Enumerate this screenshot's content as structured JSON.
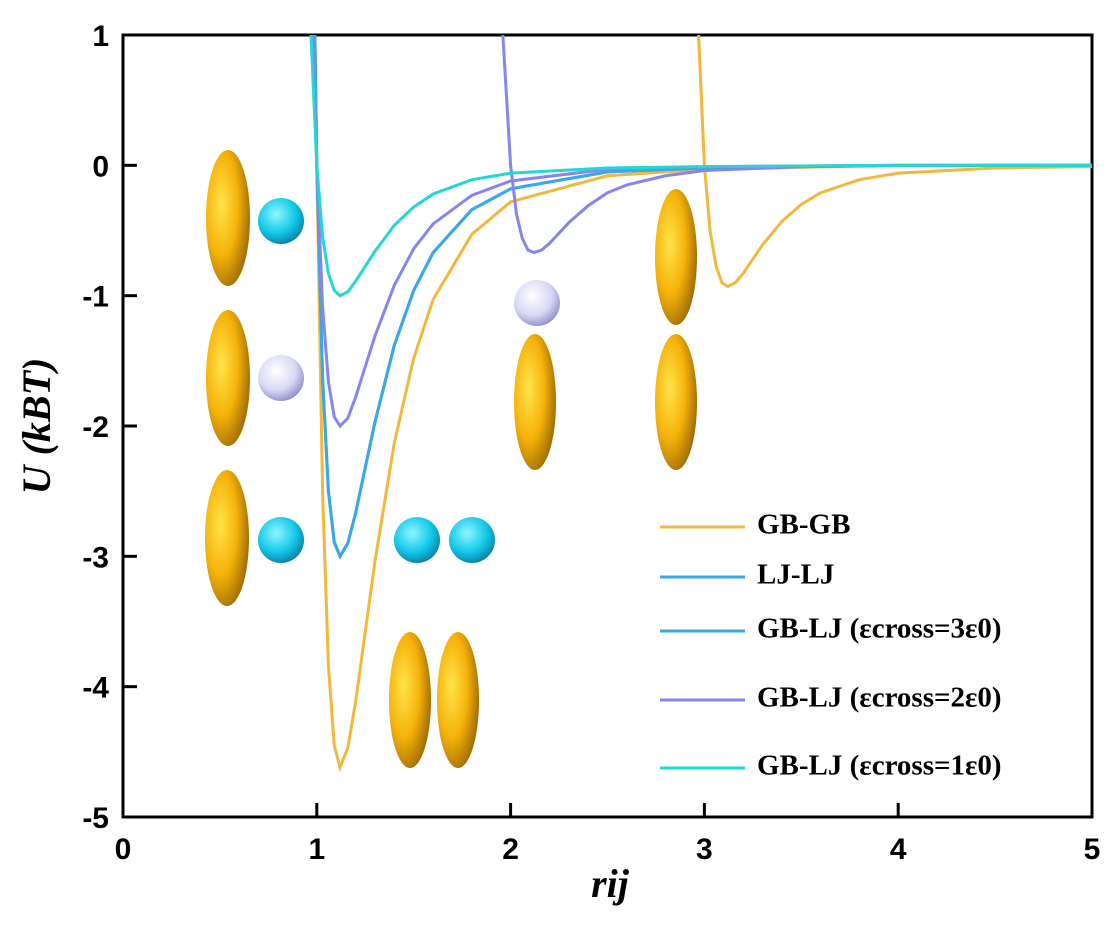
{
  "chart_data": {
    "type": "line",
    "x_label": "rij",
    "y_label": "U (kBT)",
    "xlim": [
      0,
      5
    ],
    "ylim": [
      -5,
      1
    ],
    "xticks": [
      0,
      1,
      2,
      3,
      4,
      5
    ],
    "yticks": [
      -5,
      -4,
      -3,
      -2,
      -1,
      0,
      1
    ],
    "series": [
      {
        "name": "GB-GB",
        "color": "#f2b83c",
        "x": [
          0.99,
          1.0,
          1.03,
          1.06,
          1.09,
          1.12,
          1.16,
          1.2,
          1.3,
          1.4,
          1.5,
          1.6,
          1.8,
          2.0,
          2.5,
          3.0,
          4.0,
          5.0,
          null,
          2.97,
          3.0,
          3.03,
          3.06,
          3.09,
          3.12,
          3.16,
          3.2,
          3.3,
          3.4,
          3.5,
          3.6,
          3.8,
          4.0,
          4.5,
          5.0
        ],
        "values": [
          1,
          0,
          -2.52,
          -3.84,
          -4.45,
          -4.62,
          -4.47,
          -4.12,
          -3.04,
          -2.13,
          -1.48,
          -1.03,
          -0.53,
          -0.28,
          -0.08,
          -0.03,
          0,
          0,
          null,
          1,
          0,
          -0.51,
          -0.77,
          -0.9,
          -0.93,
          -0.9,
          -0.83,
          -0.61,
          -0.43,
          -0.3,
          -0.21,
          -0.11,
          -0.06,
          -0.02,
          -0.01
        ]
      },
      {
        "name": "LJ-LJ",
        "color": "#3aa8e6",
        "x": [
          0.99,
          1.0,
          1.03,
          1.06,
          1.09,
          1.12,
          1.16,
          1.2,
          1.3,
          1.4,
          1.5,
          1.6,
          1.8,
          2.0,
          2.5,
          3.0,
          4.0,
          5.0
        ],
        "values": [
          1,
          0,
          -1.64,
          -2.5,
          -2.89,
          -3,
          -2.9,
          -2.67,
          -1.97,
          -1.38,
          -0.96,
          -0.67,
          -0.34,
          -0.18,
          -0.05,
          -0.02,
          0,
          0
        ]
      },
      {
        "name": "GB-LJ (εcross=3ε0)",
        "color": "#3aa8e6",
        "x": [
          0.99,
          1.0,
          1.03,
          1.06,
          1.09,
          1.12,
          1.16,
          1.2,
          1.3,
          1.4,
          1.5,
          1.6,
          1.8,
          2.0,
          2.5,
          3.0,
          4.0,
          5.0
        ],
        "values": [
          1,
          0,
          -1.64,
          -2.5,
          -2.89,
          -3,
          -2.9,
          -2.67,
          -1.97,
          -1.38,
          -0.96,
          -0.67,
          -0.34,
          -0.18,
          -0.05,
          -0.02,
          0,
          0
        ]
      },
      {
        "name": "GB-LJ (εcross=2ε0)",
        "color": "#8585ec",
        "x": [
          0.98,
          1.0,
          1.03,
          1.06,
          1.09,
          1.12,
          1.16,
          1.2,
          1.3,
          1.4,
          1.5,
          1.6,
          1.8,
          2.0,
          2.5,
          3.0,
          4.0,
          5.0,
          null,
          1.96,
          2.0,
          2.03,
          2.06,
          2.09,
          2.12,
          2.16,
          2.2,
          2.3,
          2.4,
          2.5,
          2.6,
          2.8,
          3.0,
          3.5,
          4.0,
          5.0
        ],
        "values": [
          1,
          0,
          -1.09,
          -1.66,
          -1.93,
          -2,
          -1.94,
          -1.78,
          -1.31,
          -0.92,
          -0.64,
          -0.45,
          -0.23,
          -0.12,
          -0.03,
          -0.01,
          0,
          0,
          null,
          1,
          0,
          -0.37,
          -0.56,
          -0.65,
          -0.67,
          -0.65,
          -0.6,
          -0.44,
          -0.31,
          -0.21,
          -0.15,
          -0.08,
          -0.04,
          -0.01,
          0,
          0
        ]
      },
      {
        "name": "GB-LJ (εcross=1ε0)",
        "color": "#22d8d4",
        "x": [
          0.97,
          1.0,
          1.03,
          1.06,
          1.09,
          1.12,
          1.16,
          1.2,
          1.3,
          1.4,
          1.5,
          1.6,
          1.8,
          2.0,
          2.5,
          3.0,
          4.0,
          5.0
        ],
        "values": [
          1,
          0,
          -0.55,
          -0.83,
          -0.96,
          -1,
          -0.97,
          -0.89,
          -0.66,
          -0.46,
          -0.32,
          -0.22,
          -0.11,
          -0.06,
          -0.02,
          -0.01,
          0,
          0
        ]
      }
    ]
  }
}
